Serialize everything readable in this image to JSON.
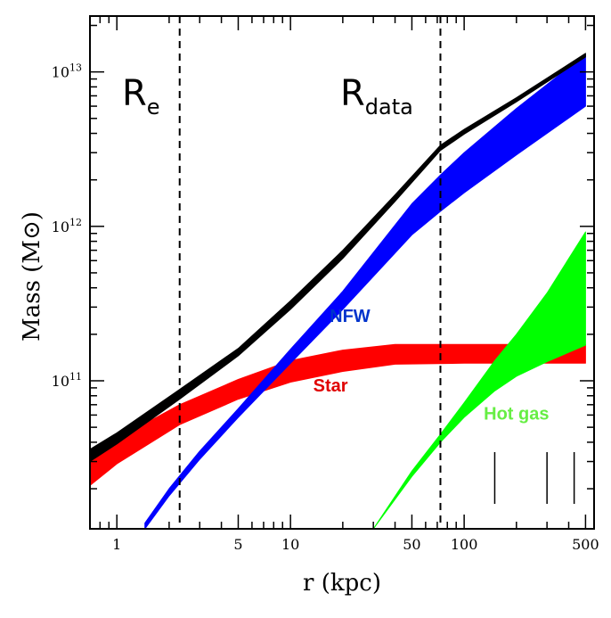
{
  "chart_data": {
    "type": "area",
    "xlabel": "r (kpc)",
    "ylabel": "Mass (M⊙)",
    "x_scale": "log",
    "y_scale": "log",
    "xlim": [
      0.7,
      560
    ],
    "ylim": [
      11000000000.0,
      23000000000000.0
    ],
    "x_ticks": [
      1,
      5,
      10,
      50,
      100,
      500
    ],
    "x_tick_labels": [
      "1",
      "5",
      "10",
      "50",
      "100",
      "500"
    ],
    "y_ticks": [
      100000000000.0,
      1000000000000.0,
      10000000000000.0
    ],
    "y_tick_labels": [
      {
        "base": "10",
        "exp": "11"
      },
      {
        "base": "10",
        "exp": "12"
      },
      {
        "base": "10",
        "exp": "13"
      }
    ],
    "grid": false,
    "reference_lines": [
      {
        "x": 2.3,
        "label": "R",
        "sub": "e"
      },
      {
        "x": 73,
        "label": "R",
        "sub": "data"
      }
    ],
    "vertical_markers_x": [
      150,
      300,
      430
    ],
    "series": [
      {
        "name": "Star",
        "color": "#ff0000",
        "x": [
          0.7,
          1,
          2.3,
          5,
          10,
          20,
          40,
          100,
          500
        ],
        "lower": [
          21000000000.0,
          29000000000.0,
          52000000000.0,
          76000000000.0,
          98000000000.0,
          115000000000.0,
          128000000000.0,
          130000000000.0,
          130000000000.0
        ],
        "upper": [
          31000000000.0,
          42000000000.0,
          70000000000.0,
          102000000000.0,
          135000000000.0,
          158000000000.0,
          172000000000.0,
          172000000000.0,
          172000000000.0
        ]
      },
      {
        "name": "NFW",
        "color": "#0000ff",
        "x": [
          1.45,
          2,
          3,
          5,
          10,
          20,
          50,
          73,
          100,
          200,
          500
        ],
        "lower": [
          11000000000.0,
          18000000000.0,
          31000000000.0,
          58000000000.0,
          130000000000.0,
          290000000000.0,
          880000000000.0,
          1250000000000.0,
          1650000000000.0,
          2900000000000.0,
          6000000000000.0
        ],
        "upper": [
          12000000000.0,
          20000000000.0,
          35000000000.0,
          66000000000.0,
          160000000000.0,
          380000000000.0,
          1400000000000.0,
          2150000000000.0,
          3000000000000.0,
          5800000000000.0,
          13000000000000.0
        ]
      },
      {
        "name": "Hot gas",
        "color": "#00ff00",
        "x": [
          30,
          50,
          73,
          100,
          150,
          200,
          300,
          500
        ],
        "lower": [
          11000000000.0,
          24000000000.0,
          40000000000.0,
          58000000000.0,
          86000000000.0,
          107000000000.0,
          133000000000.0,
          170000000000.0
        ],
        "upper": [
          11000000000.0,
          26000000000.0,
          45000000000.0,
          72000000000.0,
          135000000000.0,
          200000000000.0,
          370000000000.0,
          920000000000.0
        ]
      },
      {
        "name": "",
        "color": "#000000",
        "x": [
          0.7,
          1,
          2.3,
          5,
          10,
          20,
          40,
          73,
          100,
          200,
          500
        ],
        "lower": [
          30000000000.0,
          39000000000.0,
          76000000000.0,
          145000000000.0,
          290000000000.0,
          620000000000.0,
          1450000000000.0,
          3100000000000.0,
          3950000000000.0,
          6400000000000.0,
          12500000000000.0
        ],
        "upper": [
          36000000000.0,
          46000000000.0,
          88000000000.0,
          162000000000.0,
          330000000000.0,
          700000000000.0,
          1600000000000.0,
          3350000000000.0,
          4250000000000.0,
          6800000000000.0,
          13200000000000.0
        ]
      }
    ],
    "annotations": [
      {
        "text": "NFW",
        "x": 22,
        "y": 240000000000.0,
        "color": "#0033cc"
      },
      {
        "text": "Star",
        "x": 17,
        "y": 85000000000.0,
        "color": "#e00000"
      },
      {
        "text": "Hot gas",
        "x": 200,
        "y": 56000000000.0,
        "color": "#66ee44"
      }
    ]
  }
}
